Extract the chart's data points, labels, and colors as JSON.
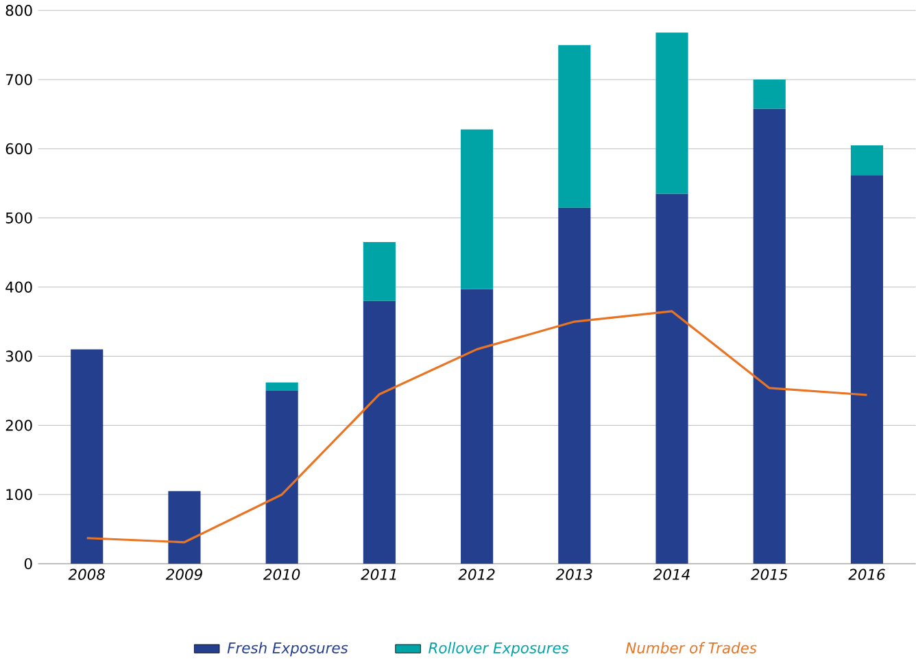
{
  "chart_data": {
    "type": "bar",
    "stacked": true,
    "categories": [
      "2008",
      "2009",
      "2010",
      "2011",
      "2012",
      "2013",
      "2014",
      "2015",
      "2016"
    ],
    "series": [
      {
        "name": "Fresh Exposures",
        "color": "#253f8f",
        "values": [
          310,
          105,
          250,
          380,
          397,
          515,
          535,
          658,
          562
        ]
      },
      {
        "name": "Rollover Exposures",
        "color": "#00a3a6",
        "values": [
          0,
          0,
          12,
          85,
          231,
          235,
          233,
          42,
          43
        ]
      },
      {
        "name": "Number of Trades",
        "type": "line",
        "color": "#e87424",
        "values": [
          37,
          31,
          100,
          245,
          310,
          350,
          365,
          254,
          244
        ]
      }
    ],
    "ylim": [
      0,
      800
    ],
    "yticks": [
      0,
      100,
      200,
      300,
      400,
      500,
      600,
      700,
      800
    ],
    "grid": "y",
    "legend": "bottom"
  }
}
